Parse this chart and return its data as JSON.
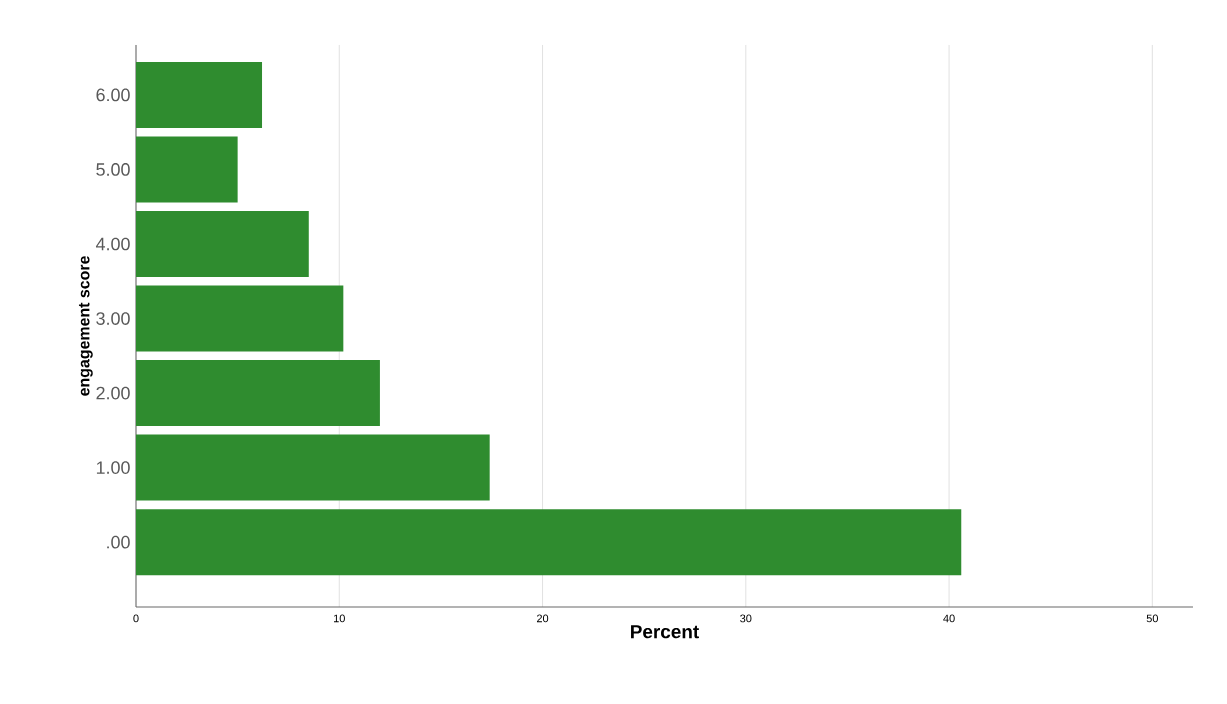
{
  "chart_data": {
    "type": "bar",
    "orientation": "horizontal",
    "xlabel": "Percent",
    "ylabel": "engagement score",
    "categories": [
      "6.00",
      "5.00",
      "4.00",
      "3.00",
      "2.00",
      "1.00",
      ".00"
    ],
    "values": [
      6.2,
      5.0,
      8.5,
      10.2,
      12.0,
      17.4,
      40.6
    ],
    "color": "#2f8c2f",
    "xlim": [
      0,
      52
    ],
    "xticks": [
      0,
      10,
      20,
      30,
      40,
      50
    ],
    "grid": "x"
  }
}
